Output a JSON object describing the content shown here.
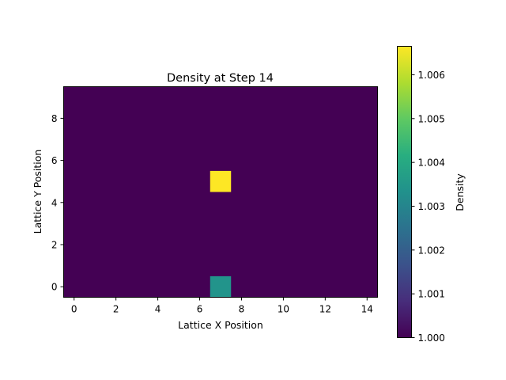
{
  "chart_data": {
    "type": "heatmap",
    "title": "Density at Step 14",
    "xlabel": "Lattice X Position",
    "ylabel": "Lattice Y Position",
    "xlim": [
      -0.5,
      14.5
    ],
    "ylim": [
      -0.5,
      9.5
    ],
    "x_ticks": [
      0,
      2,
      4,
      6,
      8,
      10,
      12,
      14
    ],
    "y_ticks": [
      0,
      2,
      4,
      6,
      8
    ],
    "grid": {
      "cols": 15,
      "rows": 10,
      "x_start": 0,
      "y_start": 0
    },
    "background_value": 1.0,
    "cells": [
      {
        "x": 7,
        "y": 5,
        "value": 1.00665
      },
      {
        "x": 7,
        "y": 0,
        "value": 1.0034
      }
    ],
    "colormap": "viridis",
    "colorbar": {
      "label": "Density",
      "min": 1.0,
      "max": 1.00665,
      "ticks": [
        "1.000",
        "1.001",
        "1.002",
        "1.003",
        "1.004",
        "1.005",
        "1.006"
      ],
      "tick_values": [
        1.0,
        1.001,
        1.002,
        1.003,
        1.004,
        1.005,
        1.006
      ]
    },
    "grid_lines": false
  }
}
